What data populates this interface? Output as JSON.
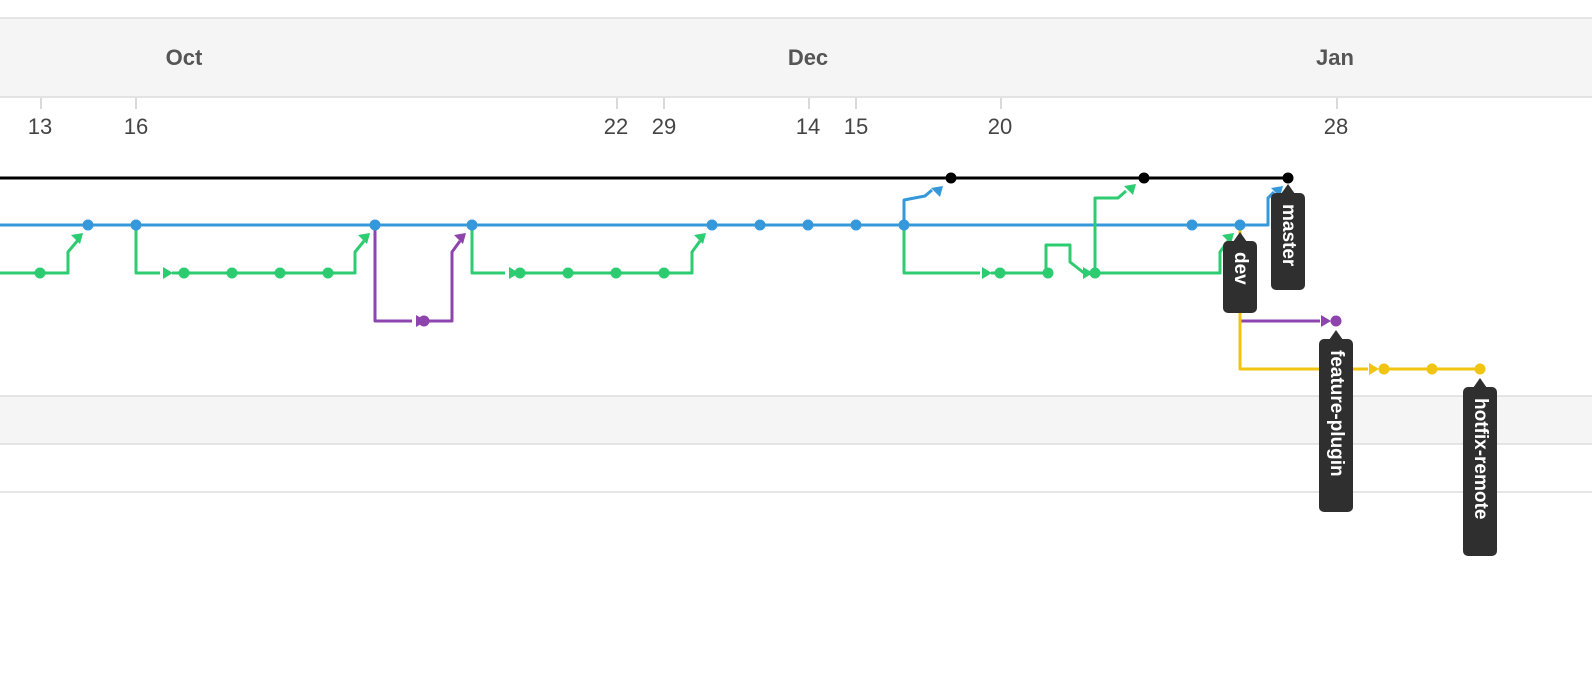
{
  "timeline": {
    "months": [
      {
        "label": "Oct"
      },
      {
        "label": "Dec"
      },
      {
        "label": "Jan"
      }
    ],
    "days": [
      {
        "label": "13"
      },
      {
        "label": "16"
      },
      {
        "label": "22"
      },
      {
        "label": "29"
      },
      {
        "label": "14"
      },
      {
        "label": "15"
      },
      {
        "label": "20"
      },
      {
        "label": "28"
      }
    ]
  },
  "colors": {
    "master": "#000000",
    "dev": "#3498db",
    "feature": "#2ecc71",
    "purple": "#8e44ad",
    "hotfix": "#f1c40f",
    "tag_bg": "#2f2f2f"
  },
  "branches": [
    {
      "name": "master",
      "color_key": "master"
    },
    {
      "name": "dev",
      "color_key": "dev"
    },
    {
      "name": "feature-plugin",
      "color_key": "purple"
    },
    {
      "name": "hotfix-remote",
      "color_key": "hotfix"
    }
  ]
}
